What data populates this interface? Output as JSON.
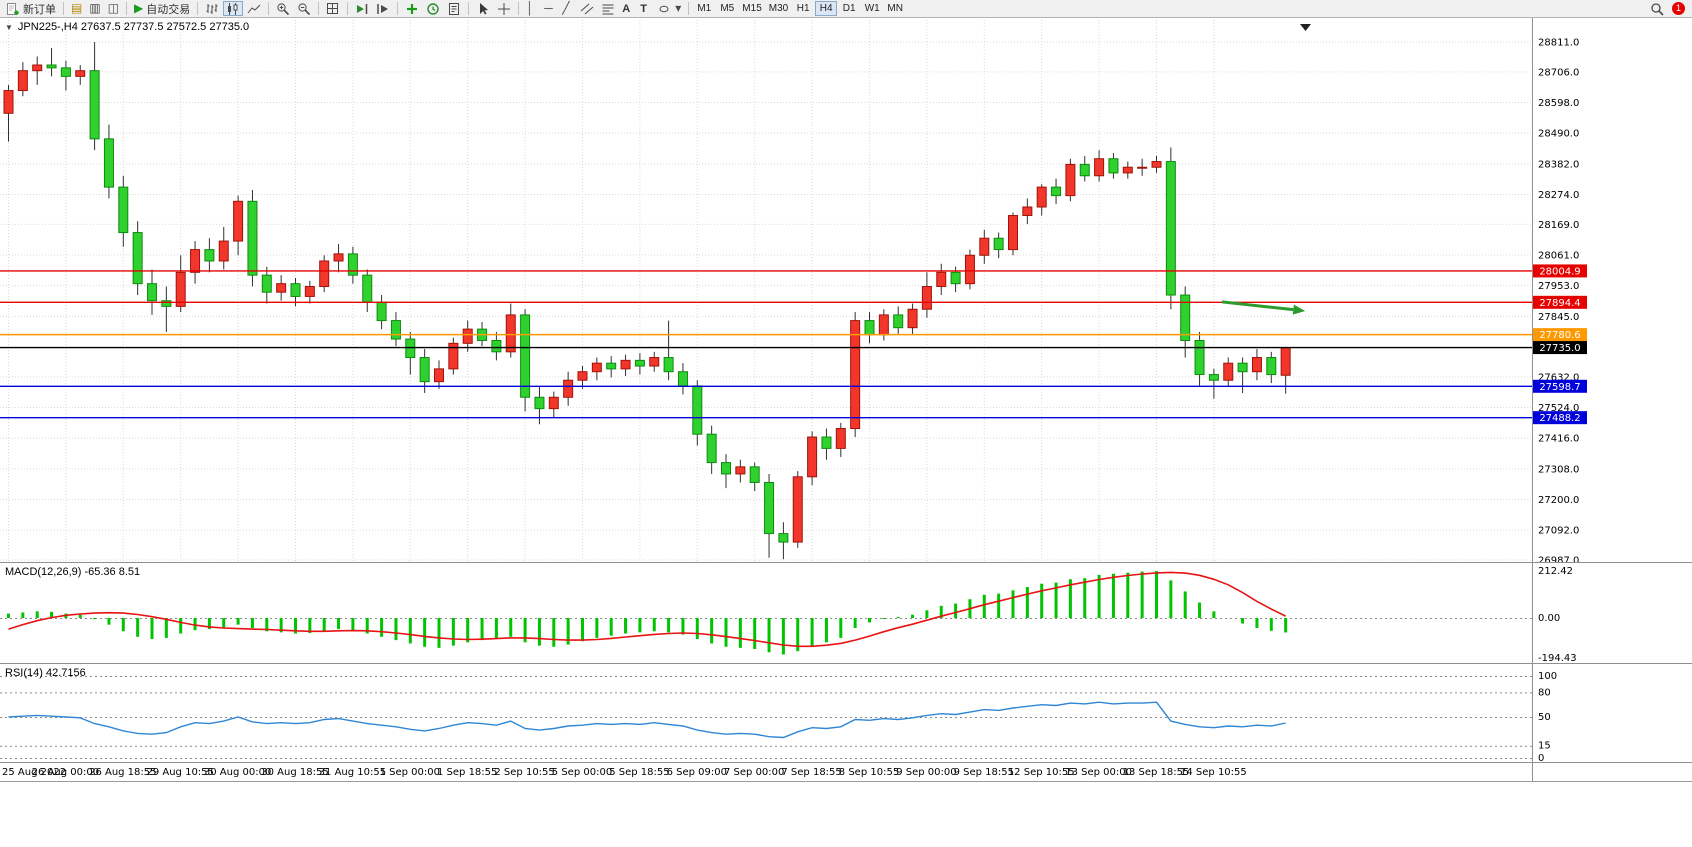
{
  "toolbar": {
    "new_order_label": "新订单",
    "auto_trading_label": "自动交易",
    "timeframes": [
      "M1",
      "M5",
      "M15",
      "M30",
      "H1",
      "H4",
      "D1",
      "W1",
      "MN"
    ],
    "active_timeframe": "H4",
    "notification_count": "1"
  },
  "icons": {
    "collapse": "▼",
    "play": "▶",
    "market_watch": "▤",
    "navigator": "▥",
    "terminal": "◫",
    "vline": "│",
    "hline": "─",
    "trendline": "╱",
    "text_tool": "A",
    "label_tool": "T",
    "dropdown": "▾"
  },
  "chart": {
    "title": "JPN225-,H4 27637.5 27737.5 27572.5 27735.0",
    "macd_label": "MACD(12,26,9) -65.36 8.51",
    "rsi_label": "RSI(14) 42.7156"
  },
  "chart_data": {
    "type": "candlestick",
    "symbol": "JPN225-",
    "period": "H4",
    "colors": {
      "candle_up": "#f2362b",
      "candle_up_border": "#a01408",
      "candle_down": "#2fd12f",
      "candle_down_border": "#0f8a0f",
      "wick": "#303030",
      "macd_hist": "#00c400",
      "macd_signal": "#e81313",
      "rsi_line": "#2f86d6"
    },
    "price_gridlines": [
      28811.0,
      28706.0,
      28598.0,
      28490.0,
      28382.0,
      28274.0,
      28169.0,
      28061.0,
      27953.0,
      27845.0,
      27737.0,
      27632.0,
      27524.0,
      27416.0,
      27308.0,
      27200.0,
      27092.0,
      26987.0
    ],
    "time_labels": [
      "25 Aug 2022",
      "26 Aug 00:00",
      "26 Aug 18:55",
      "29 Aug 10:55",
      "30 Aug 00:00",
      "30 Aug 18:55",
      "31 Aug 10:55",
      "1 Sep 00:00",
      "1 Sep 18:55",
      "2 Sep 10:55",
      "5 Sep 00:00",
      "5 Sep 18:55",
      "6 Sep 09:00",
      "7 Sep 00:00",
      "7 Sep 18:55",
      "8 Sep 10:55",
      "9 Sep 00:00",
      "9 Sep 18:55",
      "12 Sep 10:55",
      "13 Sep 00:00",
      "13 Sep 18:55",
      "14 Sep 10:55"
    ],
    "hlines": [
      {
        "price": 28004.9,
        "label": "28004.9",
        "color": "#e60000"
      },
      {
        "price": 27894.4,
        "label": "27894.4",
        "color": "#e60000"
      },
      {
        "price": 27780.6,
        "label": "27780.6",
        "color": "#ff9900"
      },
      {
        "price": 27735.0,
        "label": "27735.0",
        "color": "#000000"
      },
      {
        "price": 27598.7,
        "label": "27598.7",
        "color": "#0000dc"
      },
      {
        "price": 27488.2,
        "label": "27488.2",
        "color": "#0000dc"
      }
    ],
    "arrow": {
      "bar_start": 84.6,
      "price_start": 27896,
      "bar_end": 90.4,
      "price_end": 27864,
      "color": "#2e9b2e"
    },
    "candles": [
      [
        28560,
        28660,
        28460,
        28640
      ],
      [
        28640,
        28740,
        28620,
        28710
      ],
      [
        28710,
        28760,
        28660,
        28730
      ],
      [
        28730,
        28790,
        28690,
        28720
      ],
      [
        28720,
        28745,
        28640,
        28690
      ],
      [
        28690,
        28730,
        28660,
        28710
      ],
      [
        28710,
        28811,
        28430,
        28470
      ],
      [
        28470,
        28520,
        28260,
        28300
      ],
      [
        28300,
        28340,
        28090,
        28140
      ],
      [
        28140,
        28180,
        27920,
        27960
      ],
      [
        27960,
        28010,
        27850,
        27900
      ],
      [
        27900,
        27950,
        27790,
        27880
      ],
      [
        27880,
        28060,
        27860,
        28000
      ],
      [
        28000,
        28110,
        27960,
        28080
      ],
      [
        28080,
        28120,
        28000,
        28040
      ],
      [
        28040,
        28160,
        28010,
        28110
      ],
      [
        28110,
        28270,
        28060,
        28250
      ],
      [
        28250,
        28290,
        27950,
        27990
      ],
      [
        27990,
        28020,
        27890,
        27930
      ],
      [
        27930,
        27990,
        27900,
        27960
      ],
      [
        27960,
        27980,
        27880,
        27915
      ],
      [
        27915,
        27970,
        27890,
        27950
      ],
      [
        27950,
        28060,
        27930,
        28040
      ],
      [
        28040,
        28100,
        28000,
        28065
      ],
      [
        28065,
        28090,
        27960,
        27990
      ],
      [
        27990,
        28010,
        27860,
        27895
      ],
      [
        27895,
        27920,
        27800,
        27830
      ],
      [
        27830,
        27860,
        27740,
        27765
      ],
      [
        27765,
        27790,
        27640,
        27700
      ],
      [
        27700,
        27730,
        27575,
        27615
      ],
      [
        27615,
        27690,
        27590,
        27660
      ],
      [
        27660,
        27770,
        27640,
        27750
      ],
      [
        27750,
        27830,
        27720,
        27800
      ],
      [
        27800,
        27825,
        27740,
        27760
      ],
      [
        27760,
        27790,
        27690,
        27720
      ],
      [
        27720,
        27890,
        27700,
        27850
      ],
      [
        27850,
        27870,
        27510,
        27560
      ],
      [
        27560,
        27600,
        27465,
        27520
      ],
      [
        27520,
        27580,
        27490,
        27560
      ],
      [
        27560,
        27650,
        27530,
        27620
      ],
      [
        27620,
        27670,
        27590,
        27650
      ],
      [
        27650,
        27700,
        27620,
        27680
      ],
      [
        27680,
        27705,
        27630,
        27660
      ],
      [
        27660,
        27710,
        27635,
        27690
      ],
      [
        27690,
        27715,
        27640,
        27670
      ],
      [
        27670,
        27720,
        27650,
        27700
      ],
      [
        27700,
        27830,
        27620,
        27650
      ],
      [
        27650,
        27680,
        27570,
        27600
      ],
      [
        27600,
        27620,
        27390,
        27430
      ],
      [
        27430,
        27460,
        27290,
        27330
      ],
      [
        27330,
        27360,
        27240,
        27290
      ],
      [
        27290,
        27340,
        27260,
        27315
      ],
      [
        27315,
        27330,
        27230,
        27260
      ],
      [
        27260,
        27290,
        26995,
        27080
      ],
      [
        27080,
        27120,
        26990,
        27050
      ],
      [
        27050,
        27300,
        27030,
        27280
      ],
      [
        27280,
        27440,
        27250,
        27420
      ],
      [
        27420,
        27450,
        27340,
        27380
      ],
      [
        27380,
        27470,
        27350,
        27450
      ],
      [
        27450,
        27860,
        27420,
        27830
      ],
      [
        27830,
        27860,
        27750,
        27780
      ],
      [
        27780,
        27870,
        27760,
        27850
      ],
      [
        27850,
        27880,
        27780,
        27805
      ],
      [
        27805,
        27890,
        27780,
        27870
      ],
      [
        27870,
        28000,
        27840,
        27950
      ],
      [
        27950,
        28030,
        27920,
        28000
      ],
      [
        28000,
        28020,
        27930,
        27960
      ],
      [
        27960,
        28080,
        27940,
        28060
      ],
      [
        28060,
        28150,
        28030,
        28120
      ],
      [
        28120,
        28140,
        28050,
        28080
      ],
      [
        28080,
        28210,
        28060,
        28200
      ],
      [
        28200,
        28260,
        28170,
        28230
      ],
      [
        28230,
        28310,
        28200,
        28300
      ],
      [
        28300,
        28330,
        28240,
        28270
      ],
      [
        28270,
        28400,
        28250,
        28380
      ],
      [
        28380,
        28410,
        28320,
        28340
      ],
      [
        28340,
        28430,
        28320,
        28400
      ],
      [
        28400,
        28420,
        28330,
        28350
      ],
      [
        28350,
        28390,
        28330,
        28370
      ],
      [
        28370,
        28400,
        28340,
        28370
      ],
      [
        28370,
        28410,
        28350,
        28390
      ],
      [
        28390,
        28440,
        27870,
        27920
      ],
      [
        27920,
        27950,
        27700,
        27760
      ],
      [
        27760,
        27790,
        27600,
        27640
      ],
      [
        27640,
        27660,
        27555,
        27620
      ],
      [
        27620,
        27700,
        27600,
        27680
      ],
      [
        27680,
        27700,
        27575,
        27650
      ],
      [
        27650,
        27730,
        27620,
        27700
      ],
      [
        27700,
        27720,
        27610,
        27640
      ],
      [
        27637.5,
        27737.5,
        27572.5,
        27735.0
      ]
    ],
    "macd": {
      "axis": [
        212.42,
        0,
        -194.43
      ],
      "histogram": [
        20,
        25,
        30,
        28,
        20,
        15,
        -5,
        -30,
        -60,
        -85,
        -95,
        -90,
        -70,
        -55,
        -50,
        -45,
        -30,
        -45,
        -60,
        -65,
        -70,
        -68,
        -60,
        -50,
        -55,
        -70,
        -85,
        -100,
        -115,
        -130,
        -135,
        -125,
        -110,
        -100,
        -95,
        -85,
        -110,
        -125,
        -130,
        -120,
        -105,
        -90,
        -80,
        -70,
        -65,
        -60,
        -65,
        -75,
        -95,
        -115,
        -130,
        -135,
        -140,
        -155,
        -165,
        -150,
        -125,
        -110,
        -90,
        -45,
        -20,
        -5,
        5,
        15,
        35,
        55,
        65,
        85,
        105,
        110,
        125,
        140,
        155,
        160,
        175,
        180,
        195,
        200,
        205,
        210,
        212,
        170,
        120,
        70,
        30,
        0,
        -25,
        -45,
        -58,
        -65.36
      ],
      "signal": [
        -50,
        -30,
        -12,
        2,
        12,
        18,
        22,
        24,
        22,
        16,
        6,
        -6,
        -20,
        -32,
        -40,
        -45,
        -48,
        -50,
        -52,
        -55,
        -58,
        -60,
        -60,
        -58,
        -57,
        -58,
        -62,
        -68,
        -75,
        -83,
        -90,
        -95,
        -97,
        -96,
        -93,
        -90,
        -90,
        -93,
        -97,
        -100,
        -100,
        -97,
        -92,
        -86,
        -80,
        -74,
        -70,
        -68,
        -70,
        -76,
        -84,
        -93,
        -102,
        -112,
        -122,
        -128,
        -128,
        -123,
        -115,
        -100,
        -82,
        -62,
        -44,
        -28,
        -10,
        8,
        25,
        42,
        60,
        76,
        92,
        108,
        123,
        136,
        150,
        162,
        174,
        184,
        192,
        199,
        204,
        206,
        203,
        193,
        175,
        150,
        115,
        75,
        40,
        8.51
      ]
    },
    "rsi": {
      "levels": [
        100,
        80,
        50,
        15,
        0
      ],
      "values": [
        50,
        51,
        52,
        51,
        50,
        49,
        42,
        38,
        33,
        30,
        29,
        31,
        38,
        43,
        42,
        45,
        50,
        44,
        42,
        43,
        42,
        43,
        47,
        48,
        45,
        42,
        40,
        38,
        35,
        33,
        36,
        40,
        43,
        42,
        40,
        45,
        36,
        34,
        36,
        39,
        40,
        42,
        41,
        42,
        41,
        43,
        41,
        39,
        34,
        31,
        29,
        30,
        29,
        26,
        25,
        32,
        37,
        36,
        38,
        47,
        46,
        48,
        47,
        49,
        52,
        54,
        53,
        56,
        59,
        58,
        61,
        63,
        65,
        64,
        67,
        66,
        68,
        66,
        67,
        67,
        68,
        45,
        41,
        38,
        37,
        39,
        38,
        40,
        39,
        42.72
      ]
    }
  }
}
